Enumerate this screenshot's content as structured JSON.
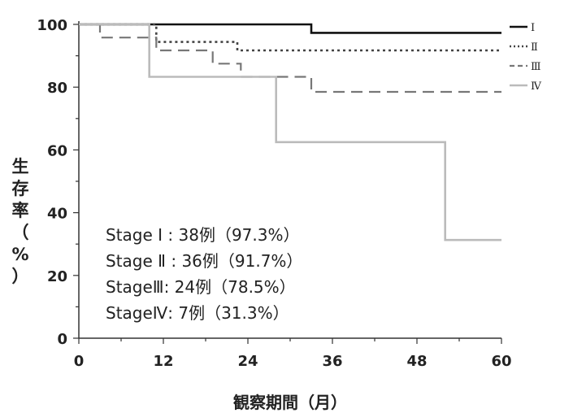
{
  "chart_data": {
    "type": "line",
    "title": "",
    "xlabel": "観察期間（月）",
    "ylabel": "生存率（%）",
    "xlim": [
      0,
      60
    ],
    "ylim": [
      0,
      100
    ],
    "x_ticks": [
      "0",
      "12",
      "24",
      "36",
      "48",
      "60"
    ],
    "y_ticks": [
      "0",
      "20",
      "40",
      "60",
      "80",
      "100"
    ],
    "grid": false,
    "legend_position": "top-right",
    "series": [
      {
        "name": "I",
        "style": "solid",
        "color": "#111111",
        "points": [
          [
            0,
            100
          ],
          [
            33,
            100
          ],
          [
            33,
            97.3
          ],
          [
            60,
            97.3
          ]
        ]
      },
      {
        "name": "Ⅱ",
        "style": "dotted",
        "color": "#444444",
        "points": [
          [
            0,
            100
          ],
          [
            11,
            100
          ],
          [
            11,
            94.4
          ],
          [
            22.5,
            94.4
          ],
          [
            22.5,
            91.7
          ],
          [
            60,
            91.7
          ]
        ]
      },
      {
        "name": "Ⅲ",
        "style": "dashed",
        "color": "#777777",
        "points": [
          [
            0,
            100
          ],
          [
            3,
            100
          ],
          [
            3,
            95.8
          ],
          [
            11,
            95.8
          ],
          [
            11,
            91.7
          ],
          [
            19,
            91.7
          ],
          [
            19,
            87.5
          ],
          [
            23,
            87.5
          ],
          [
            23,
            83.3
          ],
          [
            33,
            83.3
          ],
          [
            33,
            78.5
          ],
          [
            60,
            78.5
          ]
        ]
      },
      {
        "name": "Ⅳ",
        "style": "solid",
        "color": "#bbbbbb",
        "points": [
          [
            0,
            100
          ],
          [
            10,
            100
          ],
          [
            10,
            83.3
          ],
          [
            28,
            83.3
          ],
          [
            28,
            62.5
          ],
          [
            52,
            62.5
          ],
          [
            52,
            31.3
          ],
          [
            60,
            31.3
          ]
        ]
      }
    ],
    "annotations": [
      "Stage Ⅰ : 38例（97.3%）",
      "Stage Ⅱ : 36例（91.7%）",
      "StageⅢ: 24例（78.5%）",
      "StageⅣ:   7例（31.3%）"
    ]
  }
}
